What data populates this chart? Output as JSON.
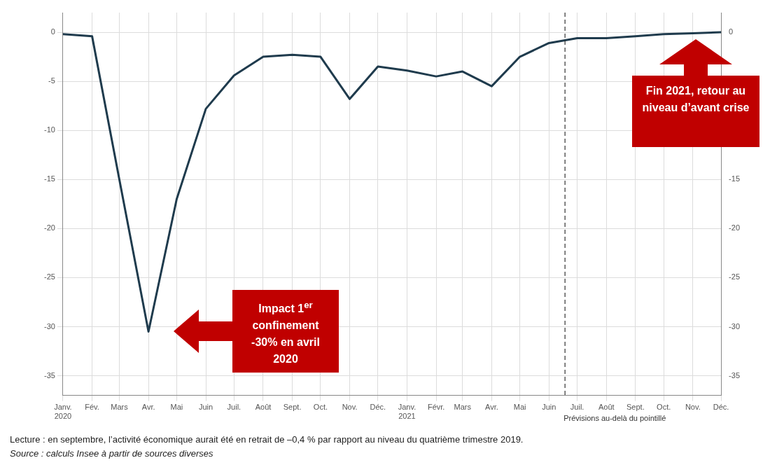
{
  "chart_data": {
    "type": "line",
    "x": [
      "2020-01",
      "2020-02",
      "2020-03",
      "2020-04",
      "2020-05",
      "2020-06",
      "2020-07",
      "2020-08",
      "2020-09",
      "2020-10",
      "2020-11",
      "2020-12",
      "2021-01",
      "2021-02",
      "2021-03",
      "2021-04",
      "2021-05",
      "2021-06",
      "2021-07",
      "2021-08",
      "2021-09",
      "2021-10",
      "2021-11",
      "2021-12"
    ],
    "series": [
      {
        "color": "#1f3b4d",
        "values": [
          -0.2,
          -0.4,
          -15,
          -30.5,
          -17,
          -7.8,
          -4.4,
          -2.5,
          -2.3,
          -2.5,
          -6.8,
          -3.5,
          -3.9,
          -4.5,
          -4,
          -5.5,
          -2.5,
          -1.1,
          -0.6,
          -0.6,
          -0.4,
          -0.2,
          -0.1,
          0
        ]
      }
    ],
    "xlim": [
      "2020-01",
      "2021-12"
    ],
    "xticks": [
      {
        "value": "2020-01",
        "label": "Janv.\n2020"
      },
      {
        "value": "2020-02",
        "label": "Fév."
      },
      {
        "value": "2020-03",
        "label": "Mars"
      },
      {
        "value": "2020-04",
        "label": "Avr."
      },
      {
        "value": "2020-05",
        "label": "Mai"
      },
      {
        "value": "2020-06",
        "label": "Juin"
      },
      {
        "value": "2020-07",
        "label": "Juil."
      },
      {
        "value": "2020-08",
        "label": "Août"
      },
      {
        "value": "2020-09",
        "label": "Sept."
      },
      {
        "value": "2020-10",
        "label": "Oct."
      },
      {
        "value": "2020-11",
        "label": "Nov."
      },
      {
        "value": "2020-12",
        "label": "Déc."
      },
      {
        "value": "2021-01",
        "label": "Janv.\n2021"
      },
      {
        "value": "2021-02",
        "label": "Févr."
      },
      {
        "value": "2021-03",
        "label": "Mars"
      },
      {
        "value": "2021-04",
        "label": "Avr."
      },
      {
        "value": "2021-05",
        "label": "Mai"
      },
      {
        "value": "2021-06",
        "label": "Juin"
      },
      {
        "value": "2021-07",
        "label": "Juil."
      },
      {
        "value": "2021-08",
        "label": "Août"
      },
      {
        "value": "2021-09",
        "label": "Sept."
      },
      {
        "value": "2021-10",
        "label": "Oct."
      },
      {
        "value": "2021-11",
        "label": "Nov."
      },
      {
        "value": "2021-12",
        "label": "Déc."
      }
    ],
    "ylim": [
      -37,
      2
    ],
    "yticks": [
      0,
      -5,
      -10,
      -15,
      -20,
      -25,
      -30,
      -35
    ],
    "y2lim": [
      -37,
      2
    ],
    "y2ticks": [
      0,
      -15,
      -20,
      -25,
      -30,
      -35
    ],
    "grid": true,
    "marker": "none",
    "ref_lines": [
      {
        "axis": "x",
        "value": "2021-06-18",
        "label": "Prévisions au-delà du pointillé",
        "color": "#333333",
        "line_style": "dashed"
      }
    ],
    "annotations": [
      "Impact 1$^{er}$ confinement -30% en avril 2020",
      "Fin 2021, retour au niveau d’avant crise",
      "Lecture : en septembre, l’activité économique aurait été en retrait de –0,4 % par rapport au niveau du quatrième trimestre 2019.",
      "Source : calculs Insee à partir de sources diverses"
    ]
  }
}
